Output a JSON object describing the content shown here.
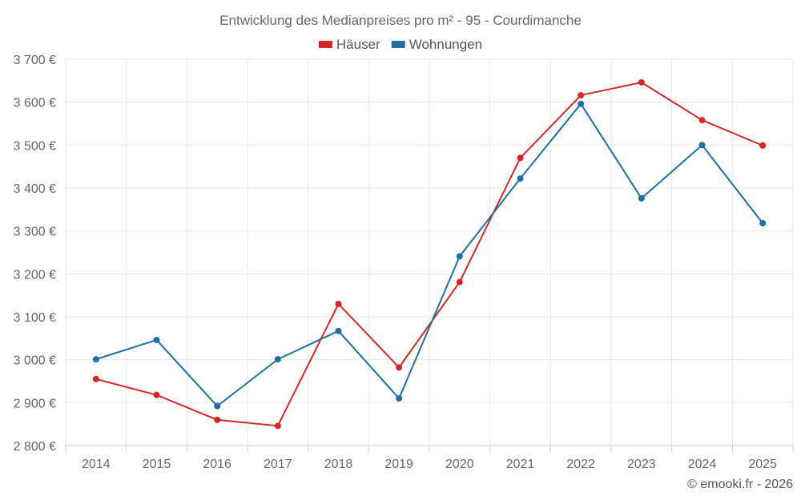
{
  "chart_data": {
    "type": "line",
    "title": "Entwicklung des Medianpreises pro m² - 95 - Courdimanche",
    "categories": [
      "2014",
      "2015",
      "2016",
      "2017",
      "2018",
      "2019",
      "2020",
      "2021",
      "2022",
      "2023",
      "2024",
      "2025"
    ],
    "series": [
      {
        "name": "Häuser",
        "color": "#d62728",
        "values": [
          2955,
          2918,
          2860,
          2846,
          3130,
          2982,
          3181,
          3470,
          3616,
          3646,
          3558,
          3499
        ]
      },
      {
        "name": "Wohnungen",
        "color": "#1f6fa3",
        "values": [
          3001,
          3046,
          2892,
          3001,
          3067,
          2910,
          3241,
          3422,
          3596,
          3376,
          3500,
          3318
        ]
      }
    ],
    "ylim": [
      2800,
      3700
    ],
    "yticks": [
      2800,
      2900,
      3000,
      3100,
      3200,
      3300,
      3400,
      3500,
      3600,
      3700
    ],
    "ytick_labels": [
      "2 800 €",
      "2 900 €",
      "3 000 €",
      "3 100 €",
      "3 200 €",
      "3 300 €",
      "3 400 €",
      "3 500 €",
      "3 600 €",
      "3 700 €"
    ],
    "xlabel": "",
    "ylabel": "",
    "grid": true,
    "legend_position": "top-center"
  },
  "credit": "© emooki.fr - 2026"
}
